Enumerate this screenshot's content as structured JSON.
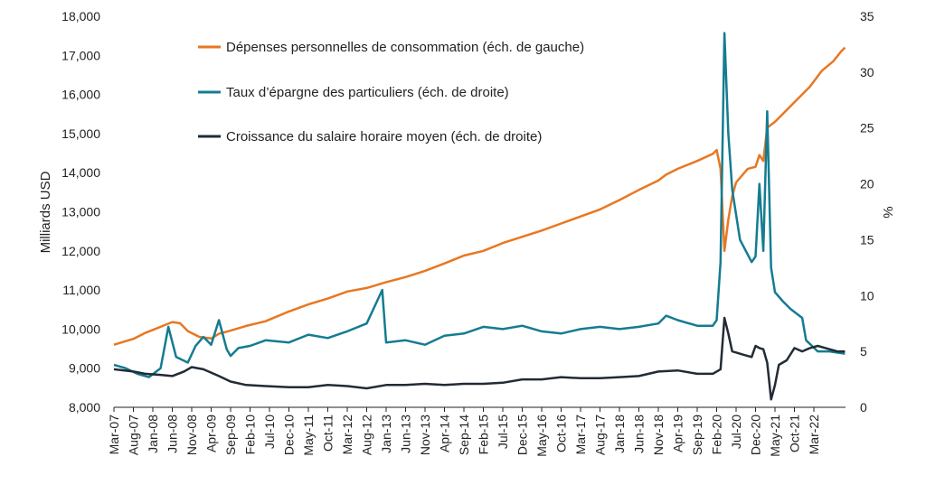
{
  "chart_data": {
    "type": "line",
    "ylabel": "Milliards USD",
    "y2label": "%",
    "ylim": [
      8000,
      18000
    ],
    "y2lim": [
      0,
      35
    ],
    "yticks": [
      "8,000",
      "9,000",
      "10,000",
      "11,000",
      "12,000",
      "13,000",
      "14,000",
      "15,000",
      "16,000",
      "17,000",
      "18,000"
    ],
    "y2ticks": [
      "0",
      "5",
      "10",
      "15",
      "20",
      "25",
      "30",
      "35"
    ],
    "x_start": "2007-03",
    "x_labels": [
      "Mar-07",
      "Aug-07",
      "Jan-08",
      "Jun-08",
      "Nov-08",
      "Apr-09",
      "Sep-09",
      "Feb-10",
      "Jul-10",
      "Dec-10",
      "May-11",
      "Oct-11",
      "Mar-12",
      "Aug-12",
      "Jan-13",
      "Jun-13",
      "Nov-13",
      "Apr-14",
      "Sep-14",
      "Feb-15",
      "Jul-15",
      "Dec-15",
      "May-16",
      "Oct-16",
      "Mar-17",
      "Aug-17",
      "Jan-18",
      "Jun-18",
      "Nov-18",
      "Apr-19",
      "Sep-19",
      "Feb-20",
      "Jul-20",
      "Dec-20",
      "May-21",
      "Oct-21",
      "Mar-22"
    ],
    "legend": "top-center",
    "grid": false,
    "colors": {
      "consumption": "#E87722",
      "savings": "#147C91",
      "wage": "#222B36"
    },
    "series": [
      {
        "name": "Dépenses personnelles de consommation (éch. de gauche)",
        "axis": "left",
        "points": [
          [
            "2007-03",
            9600
          ],
          [
            "2007-08",
            9750
          ],
          [
            "2007-11",
            9900
          ],
          [
            "2008-01",
            9980
          ],
          [
            "2008-06",
            10180
          ],
          [
            "2008-08",
            10150
          ],
          [
            "2008-10",
            9950
          ],
          [
            "2009-01",
            9800
          ],
          [
            "2009-04",
            9760
          ],
          [
            "2009-06",
            9880
          ],
          [
            "2009-09",
            9960
          ],
          [
            "2010-01",
            10080
          ],
          [
            "2010-06",
            10200
          ],
          [
            "2010-12",
            10450
          ],
          [
            "2011-05",
            10630
          ],
          [
            "2011-10",
            10780
          ],
          [
            "2012-03",
            10960
          ],
          [
            "2012-08",
            11050
          ],
          [
            "2013-01",
            11200
          ],
          [
            "2013-06",
            11330
          ],
          [
            "2013-11",
            11490
          ],
          [
            "2014-04",
            11680
          ],
          [
            "2014-09",
            11880
          ],
          [
            "2015-02",
            12000
          ],
          [
            "2015-07",
            12200
          ],
          [
            "2015-12",
            12360
          ],
          [
            "2016-05",
            12520
          ],
          [
            "2016-10",
            12700
          ],
          [
            "2017-03",
            12880
          ],
          [
            "2017-08",
            13060
          ],
          [
            "2018-01",
            13300
          ],
          [
            "2018-06",
            13560
          ],
          [
            "2018-11",
            13800
          ],
          [
            "2019-01",
            13950
          ],
          [
            "2019-04",
            14100
          ],
          [
            "2019-09",
            14300
          ],
          [
            "2020-01",
            14480
          ],
          [
            "2020-02",
            14580
          ],
          [
            "2020-03",
            14100
          ],
          [
            "2020-04",
            12000
          ],
          [
            "2020-05",
            12800
          ],
          [
            "2020-06",
            13400
          ],
          [
            "2020-07",
            13750
          ],
          [
            "2020-10",
            14100
          ],
          [
            "2020-12",
            14150
          ],
          [
            "2021-01",
            14450
          ],
          [
            "2021-02",
            14300
          ],
          [
            "2021-03",
            15150
          ],
          [
            "2021-05",
            15300
          ],
          [
            "2021-08",
            15600
          ],
          [
            "2021-11",
            15900
          ],
          [
            "2022-02",
            16200
          ],
          [
            "2022-05",
            16600
          ],
          [
            "2022-08",
            16850
          ],
          [
            "2022-10",
            17100
          ],
          [
            "2022-11",
            17200
          ]
        ]
      },
      {
        "name": "Taux d’épargne des particuliers (éch. de droite)",
        "axis": "right",
        "points": [
          [
            "2007-03",
            3.8
          ],
          [
            "2007-06",
            3.5
          ],
          [
            "2007-09",
            3.0
          ],
          [
            "2007-12",
            2.7
          ],
          [
            "2008-03",
            3.5
          ],
          [
            "2008-05",
            7.2
          ],
          [
            "2008-07",
            4.5
          ],
          [
            "2008-10",
            4.0
          ],
          [
            "2008-12",
            5.5
          ],
          [
            "2009-02",
            6.3
          ],
          [
            "2009-04",
            5.6
          ],
          [
            "2009-06",
            7.8
          ],
          [
            "2009-08",
            5.2
          ],
          [
            "2009-09",
            4.6
          ],
          [
            "2009-11",
            5.3
          ],
          [
            "2010-02",
            5.5
          ],
          [
            "2010-06",
            6.0
          ],
          [
            "2010-12",
            5.8
          ],
          [
            "2011-05",
            6.5
          ],
          [
            "2011-10",
            6.2
          ],
          [
            "2012-03",
            6.8
          ],
          [
            "2012-08",
            7.5
          ],
          [
            "2012-12",
            10.5
          ],
          [
            "2013-01",
            5.8
          ],
          [
            "2013-06",
            6.0
          ],
          [
            "2013-11",
            5.6
          ],
          [
            "2014-04",
            6.4
          ],
          [
            "2014-09",
            6.6
          ],
          [
            "2015-02",
            7.2
          ],
          [
            "2015-07",
            7.0
          ],
          [
            "2015-12",
            7.3
          ],
          [
            "2016-05",
            6.8
          ],
          [
            "2016-10",
            6.6
          ],
          [
            "2017-03",
            7.0
          ],
          [
            "2017-08",
            7.2
          ],
          [
            "2018-01",
            7.0
          ],
          [
            "2018-06",
            7.2
          ],
          [
            "2018-11",
            7.5
          ],
          [
            "2019-01",
            8.2
          ],
          [
            "2019-04",
            7.8
          ],
          [
            "2019-09",
            7.3
          ],
          [
            "2020-01",
            7.3
          ],
          [
            "2020-02",
            7.8
          ],
          [
            "2020-03",
            13.0
          ],
          [
            "2020-04",
            33.5
          ],
          [
            "2020-05",
            24.5
          ],
          [
            "2020-06",
            19.5
          ],
          [
            "2020-08",
            15.0
          ],
          [
            "2020-11",
            13.0
          ],
          [
            "2020-12",
            13.5
          ],
          [
            "2021-01",
            20.0
          ],
          [
            "2021-02",
            14.0
          ],
          [
            "2021-03",
            26.5
          ],
          [
            "2021-04",
            12.5
          ],
          [
            "2021-05",
            10.3
          ],
          [
            "2021-07",
            9.5
          ],
          [
            "2021-09",
            8.8
          ],
          [
            "2021-12",
            8.0
          ],
          [
            "2022-01",
            6.0
          ],
          [
            "2022-04",
            5.0
          ],
          [
            "2022-07",
            5.0
          ],
          [
            "2022-11",
            4.8
          ]
        ]
      },
      {
        "name": "Croissance du salaire horaire moyen (éch. de droite)",
        "axis": "right",
        "points": [
          [
            "2007-03",
            3.4
          ],
          [
            "2007-08",
            3.2
          ],
          [
            "2007-11",
            3.0
          ],
          [
            "2008-03",
            2.9
          ],
          [
            "2008-06",
            2.8
          ],
          [
            "2008-09",
            3.2
          ],
          [
            "2008-11",
            3.6
          ],
          [
            "2009-02",
            3.4
          ],
          [
            "2009-06",
            2.8
          ],
          [
            "2009-09",
            2.3
          ],
          [
            "2010-01",
            2.0
          ],
          [
            "2010-06",
            1.9
          ],
          [
            "2010-12",
            1.8
          ],
          [
            "2011-05",
            1.8
          ],
          [
            "2011-10",
            2.0
          ],
          [
            "2012-03",
            1.9
          ],
          [
            "2012-08",
            1.7
          ],
          [
            "2013-01",
            2.0
          ],
          [
            "2013-06",
            2.0
          ],
          [
            "2013-11",
            2.1
          ],
          [
            "2014-04",
            2.0
          ],
          [
            "2014-09",
            2.1
          ],
          [
            "2015-02",
            2.1
          ],
          [
            "2015-07",
            2.2
          ],
          [
            "2015-12",
            2.5
          ],
          [
            "2016-05",
            2.5
          ],
          [
            "2016-10",
            2.7
          ],
          [
            "2017-03",
            2.6
          ],
          [
            "2017-08",
            2.6
          ],
          [
            "2018-01",
            2.7
          ],
          [
            "2018-06",
            2.8
          ],
          [
            "2018-11",
            3.2
          ],
          [
            "2019-04",
            3.3
          ],
          [
            "2019-09",
            3.0
          ],
          [
            "2020-01",
            3.0
          ],
          [
            "2020-03",
            3.4
          ],
          [
            "2020-04",
            8.0
          ],
          [
            "2020-05",
            6.6
          ],
          [
            "2020-06",
            5.0
          ],
          [
            "2020-09",
            4.7
          ],
          [
            "2020-11",
            4.5
          ],
          [
            "2020-12",
            5.5
          ],
          [
            "2021-01",
            5.3
          ],
          [
            "2021-02",
            5.2
          ],
          [
            "2021-03",
            4.0
          ],
          [
            "2021-04",
            0.7
          ],
          [
            "2021-05",
            2.0
          ],
          [
            "2021-06",
            3.8
          ],
          [
            "2021-08",
            4.2
          ],
          [
            "2021-10",
            5.3
          ],
          [
            "2021-12",
            5.0
          ],
          [
            "2022-02",
            5.3
          ],
          [
            "2022-04",
            5.5
          ],
          [
            "2022-06",
            5.3
          ],
          [
            "2022-09",
            5.0
          ],
          [
            "2022-11",
            5.0
          ]
        ]
      }
    ]
  }
}
